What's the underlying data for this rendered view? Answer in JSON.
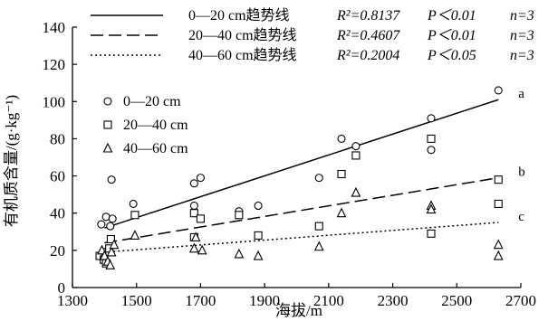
{
  "chart_data": {
    "type": "scatter",
    "xlabel": "海拔/m",
    "ylabel": "有机质含量/(g·kg⁻¹)",
    "xlim": [
      1300,
      2700
    ],
    "ylim": [
      0,
      140
    ],
    "xticks": [
      1300,
      1500,
      1700,
      1900,
      2100,
      2300,
      2500,
      2700
    ],
    "yticks": [
      0,
      20,
      40,
      60,
      80,
      100,
      120,
      140
    ],
    "grid": false,
    "series": [
      {
        "name": "0—20 cm",
        "marker": "circle",
        "points": [
          {
            "x": 1390,
            "y": 34
          },
          {
            "x": 1405,
            "y": 38
          },
          {
            "x": 1418,
            "y": 33
          },
          {
            "x": 1422,
            "y": 58
          },
          {
            "x": 1425,
            "y": 37
          },
          {
            "x": 1490,
            "y": 45
          },
          {
            "x": 1680,
            "y": 44
          },
          {
            "x": 1680,
            "y": 56
          },
          {
            "x": 1700,
            "y": 59
          },
          {
            "x": 1820,
            "y": 41
          },
          {
            "x": 1880,
            "y": 44
          },
          {
            "x": 2070,
            "y": 59
          },
          {
            "x": 2140,
            "y": 80
          },
          {
            "x": 2185,
            "y": 76
          },
          {
            "x": 2420,
            "y": 91
          },
          {
            "x": 2420,
            "y": 74
          },
          {
            "x": 2630,
            "y": 106
          }
        ]
      },
      {
        "name": "20—40 cm",
        "marker": "square",
        "points": [
          {
            "x": 1385,
            "y": 17
          },
          {
            "x": 1398,
            "y": 15
          },
          {
            "x": 1402,
            "y": 19
          },
          {
            "x": 1405,
            "y": 13
          },
          {
            "x": 1415,
            "y": 21
          },
          {
            "x": 1420,
            "y": 26
          },
          {
            "x": 1495,
            "y": 39
          },
          {
            "x": 1680,
            "y": 27
          },
          {
            "x": 1680,
            "y": 40
          },
          {
            "x": 1700,
            "y": 37
          },
          {
            "x": 1820,
            "y": 39
          },
          {
            "x": 1880,
            "y": 28
          },
          {
            "x": 2070,
            "y": 33
          },
          {
            "x": 2140,
            "y": 61
          },
          {
            "x": 2185,
            "y": 71
          },
          {
            "x": 2420,
            "y": 80
          },
          {
            "x": 2420,
            "y": 29
          },
          {
            "x": 2630,
            "y": 58
          },
          {
            "x": 2630,
            "y": 45
          }
        ]
      },
      {
        "name": "40—60 cm",
        "marker": "triangle",
        "points": [
          {
            "x": 1392,
            "y": 20
          },
          {
            "x": 1400,
            "y": 17
          },
          {
            "x": 1410,
            "y": 14
          },
          {
            "x": 1418,
            "y": 12
          },
          {
            "x": 1422,
            "y": 19
          },
          {
            "x": 1430,
            "y": 23
          },
          {
            "x": 1495,
            "y": 28
          },
          {
            "x": 1680,
            "y": 21
          },
          {
            "x": 1685,
            "y": 27
          },
          {
            "x": 1705,
            "y": 20
          },
          {
            "x": 1820,
            "y": 18
          },
          {
            "x": 1880,
            "y": 17
          },
          {
            "x": 2070,
            "y": 22
          },
          {
            "x": 2140,
            "y": 40
          },
          {
            "x": 2185,
            "y": 51
          },
          {
            "x": 2420,
            "y": 44
          },
          {
            "x": 2420,
            "y": 42
          },
          {
            "x": 2630,
            "y": 23
          },
          {
            "x": 2630,
            "y": 17
          }
        ]
      }
    ],
    "trendlines": [
      {
        "name": "0—20 cm趋势线",
        "style": "solid",
        "x": [
          1400,
          2630
        ],
        "y": [
          32,
          101
        ],
        "r2": "0.8137",
        "p": "<0.01",
        "n": "3",
        "label": "a"
      },
      {
        "name": "20—40 cm趋势线",
        "style": "dashed",
        "x": [
          1400,
          2630
        ],
        "y": [
          24,
          59
        ],
        "r2": "0.4607",
        "p": "<0.01",
        "n": "3",
        "label": "b"
      },
      {
        "name": "40—60 cm趋势线",
        "style": "dotted",
        "x": [
          1400,
          2630
        ],
        "y": [
          19,
          35
        ],
        "r2": "0.2004",
        "p": "<0.05",
        "n": "3",
        "label": "c"
      }
    ],
    "legend": {
      "trend_entries": [
        {
          "text": "0—20 cm趋势线",
          "r2_label": "R²=0.8137",
          "p_label": "P＜0.01",
          "n_label": "n=3"
        },
        {
          "text": "20—40 cm趋势线",
          "r2_label": "R²=0.4607",
          "p_label": "P＜0.01",
          "n_label": "n=3"
        },
        {
          "text": "40—60 cm趋势线",
          "r2_label": "R²=0.2004",
          "p_label": "P＜0.05",
          "n_label": "n=3"
        }
      ],
      "marker_entries": [
        {
          "text": "0—20 cm",
          "marker": "circle"
        },
        {
          "text": "20—40 cm",
          "marker": "square"
        },
        {
          "text": "40—60 cm",
          "marker": "triangle"
        }
      ]
    }
  }
}
